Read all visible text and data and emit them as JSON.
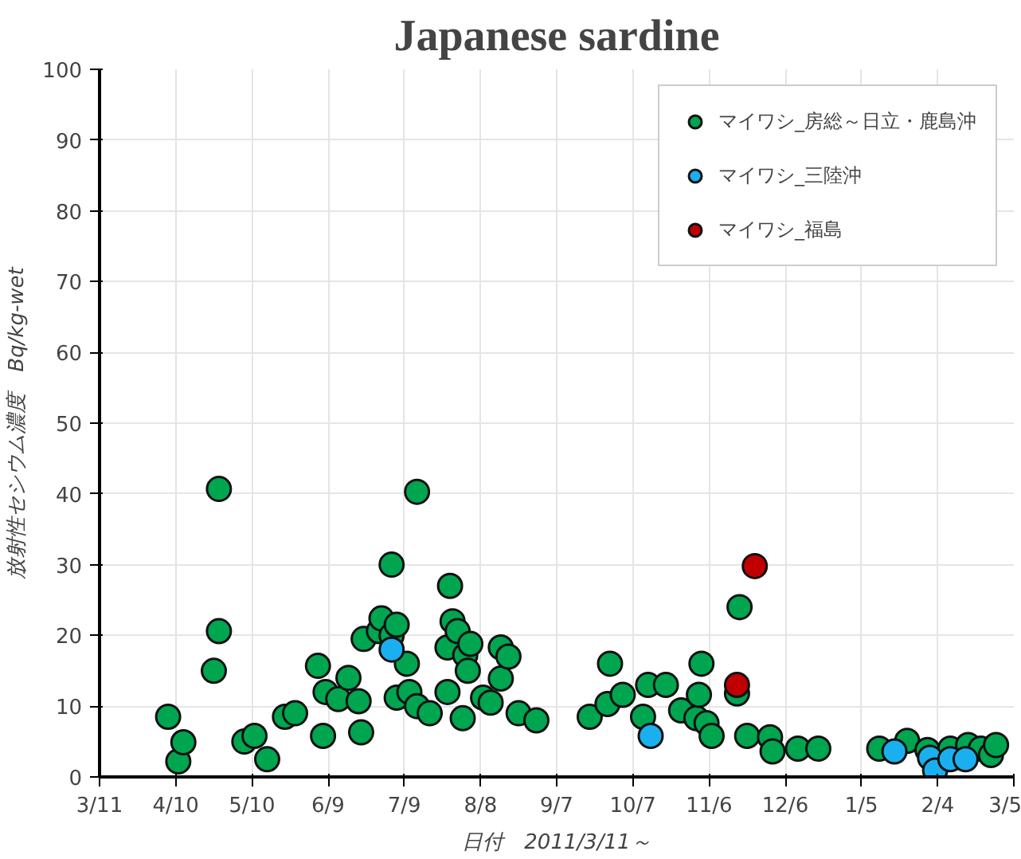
{
  "chart_data": {
    "type": "scatter",
    "title": "Japanese sardine",
    "xlabel": "日付　2011/3/11～",
    "ylabel": "放射性セシウム濃度　Bq/kg-wet",
    "xlim": [
      "2011-03-11",
      "2012-03-05"
    ],
    "xticks": [
      {
        "value": "2011-03-11",
        "label": "3/11"
      },
      {
        "value": "2011-04-10",
        "label": "4/10"
      },
      {
        "value": "2011-05-10",
        "label": "5/10"
      },
      {
        "value": "2011-06-09",
        "label": "6/9"
      },
      {
        "value": "2011-07-09",
        "label": "7/9"
      },
      {
        "value": "2011-08-08",
        "label": "8/8"
      },
      {
        "value": "2011-09-07",
        "label": "9/7"
      },
      {
        "value": "2011-10-07",
        "label": "10/7"
      },
      {
        "value": "2011-11-06",
        "label": "11/6"
      },
      {
        "value": "2011-12-06",
        "label": "12/6"
      },
      {
        "value": "2012-01-05",
        "label": "1/5"
      },
      {
        "value": "2012-02-04",
        "label": "2/4"
      },
      {
        "value": "2012-03-05",
        "label": "3/5"
      }
    ],
    "ylim": [
      0,
      100
    ],
    "yticks": [
      0,
      10,
      20,
      30,
      40,
      50,
      60,
      70,
      80,
      90,
      100
    ],
    "grid": true,
    "legend": "top right",
    "marker": "circle",
    "series": [
      {
        "name": "マイワシ_房総～日立・鹿島沖",
        "color": "#00a550",
        "x": [
          "2011-04-07",
          "2011-04-11",
          "2011-04-13",
          "2011-04-25",
          "2011-04-27",
          "2011-04-27",
          "2011-05-07",
          "2011-05-11",
          "2011-05-16",
          "2011-05-23",
          "2011-05-27",
          "2011-06-05",
          "2011-06-08",
          "2011-06-07",
          "2011-06-13",
          "2011-06-17",
          "2011-06-21",
          "2011-06-22",
          "2011-06-23",
          "2011-06-29",
          "2011-06-30",
          "2011-07-04",
          "2011-07-04",
          "2011-07-06",
          "2011-07-06",
          "2011-07-10",
          "2011-07-11",
          "2011-07-14",
          "2011-07-14",
          "2011-07-19",
          "2011-07-26",
          "2011-07-27",
          "2011-07-28",
          "2011-07-26",
          "2011-07-30",
          "2011-08-02",
          "2011-08-01",
          "2011-08-04",
          "2011-08-03",
          "2011-08-09",
          "2011-08-12",
          "2011-08-16",
          "2011-08-16",
          "2011-08-19",
          "2011-08-23",
          "2011-08-30",
          "2011-09-20",
          "2011-09-27",
          "2011-09-28",
          "2011-10-03",
          "2011-10-11",
          "2011-10-13",
          "2011-10-20",
          "2011-10-26",
          "2011-11-01",
          "2011-11-03",
          "2011-11-02",
          "2011-11-05",
          "2011-11-07",
          "2011-11-17",
          "2011-11-18",
          "2011-11-21",
          "2011-11-30",
          "2011-12-01",
          "2011-12-11",
          "2011-12-19",
          "2012-01-12",
          "2012-01-23",
          "2012-01-31",
          "2012-02-09",
          "2012-02-16",
          "2012-02-21",
          "2012-02-25",
          "2012-02-27"
        ],
        "values": [
          8.5,
          2.2,
          4.9,
          15,
          40.7,
          20.6,
          5,
          5.8,
          2.5,
          8.5,
          9,
          15.7,
          12,
          5.8,
          11,
          14,
          10.7,
          6.3,
          19.5,
          20.6,
          22.4,
          20,
          30,
          21.5,
          11.2,
          16,
          12,
          10,
          40.3,
          9,
          12,
          27,
          22,
          18.3,
          20.6,
          17.2,
          8.3,
          18.8,
          15,
          11.2,
          10.5,
          13.9,
          18.3,
          17,
          9,
          8,
          8.5,
          10.3,
          16,
          11.6,
          8.5,
          13,
          13,
          9.4,
          8.3,
          16,
          11.6,
          7.6,
          5.8,
          11.8,
          24,
          5.8,
          5.6,
          3.6,
          4,
          4,
          4,
          5.1,
          3.8,
          4,
          4.5,
          4,
          3.1,
          4.5
        ]
      },
      {
        "name": "マイワシ_三陸沖",
        "color": "#1ab0f0",
        "x": [
          "2011-07-04",
          "2011-10-14",
          "2012-01-18",
          "2012-02-01",
          "2012-02-03",
          "2012-02-09",
          "2012-02-15"
        ],
        "values": [
          18,
          5.8,
          3.6,
          2.7,
          0.9,
          2.5,
          2.5
        ]
      },
      {
        "name": "マイワシ_福島",
        "color": "#c00000",
        "x": [
          "2011-11-17",
          "2011-11-24"
        ],
        "values": [
          13,
          29.8
        ]
      }
    ]
  }
}
